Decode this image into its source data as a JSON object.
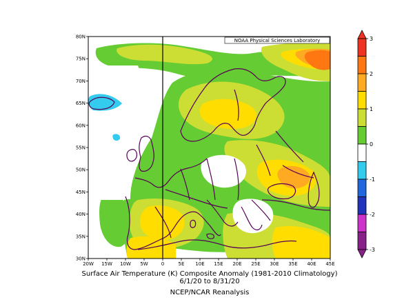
{
  "map": {
    "credit": "NOAA Physical Sciences Laboratory",
    "lat_labels": [
      "80N",
      "75N",
      "70N",
      "65N",
      "60N",
      "55N",
      "50N",
      "45N",
      "40N",
      "35N",
      "30N"
    ],
    "lon_labels": [
      "20W",
      "15W",
      "10W",
      "5W",
      "0",
      "5E",
      "10E",
      "15E",
      "20E",
      "25E",
      "30E",
      "35E",
      "40E",
      "45E"
    ],
    "caption": {
      "line1": "Surface Air Temperature (K) Composite Anomaly (1981-2010 Climatology)",
      "line2": "6/1/20  to 8/31/20",
      "line3": "NCEP/NCAR Reanalysis"
    }
  },
  "colorbar": {
    "colors": [
      "#ffffff",
      "#66cc33",
      "#ccdd33",
      "#ffdd00",
      "#ffaa22",
      "#ff7711",
      "#ee3322"
    ],
    "neg_colors": [
      "#33ccee",
      "#2266dd",
      "#2233bb",
      "#cc33cc",
      "#882288"
    ],
    "tick_labels": [
      "3",
      "2",
      "1",
      "0",
      "-1",
      "-2",
      "-3"
    ]
  },
  "chart_data": {
    "type": "heatmap",
    "title": "Surface Air Temperature (K) Composite Anomaly (1981-2010 Climatology)",
    "subtitle": "6/1/20  to 8/31/20",
    "source": "NCEP/NCAR Reanalysis",
    "x_range": [
      "20W",
      "45E"
    ],
    "y_range": [
      "30N",
      "80N"
    ],
    "colorbar_range": [
      -3,
      3
    ]
  }
}
